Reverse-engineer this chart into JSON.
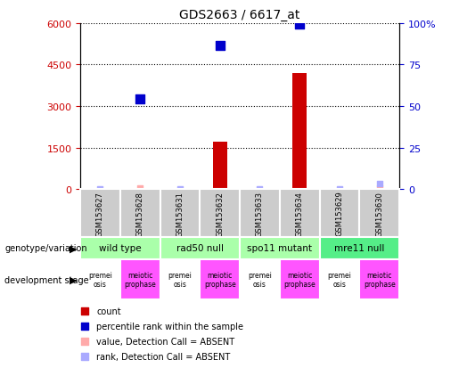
{
  "title": "GDS2663 / 6617_at",
  "samples": [
    "GSM153627",
    "GSM153628",
    "GSM153631",
    "GSM153632",
    "GSM153633",
    "GSM153634",
    "GSM153629",
    "GSM153630"
  ],
  "count_values": [
    null,
    null,
    null,
    1700,
    null,
    4200,
    null,
    null
  ],
  "count_absent_vals": [
    null,
    50,
    null,
    null,
    null,
    null,
    null,
    50
  ],
  "percentile_present": [
    null,
    3250,
    null,
    5200,
    null,
    5950,
    null,
    null
  ],
  "percentile_absent_vals": [
    2,
    null,
    2,
    null,
    2,
    null,
    2,
    200
  ],
  "ylim_left": [
    0,
    6000
  ],
  "ylim_right": [
    0,
    100
  ],
  "yticks_left": [
    0,
    1500,
    3000,
    4500,
    6000
  ],
  "yticks_right": [
    0,
    25,
    50,
    75,
    100
  ],
  "left_tick_labels": [
    "0",
    "1500",
    "3000",
    "4500",
    "6000"
  ],
  "right_tick_labels": [
    "0",
    "25",
    "50",
    "75",
    "100%"
  ],
  "left_color": "#cc0000",
  "right_color": "#0000cc",
  "bar_color": "#cc0000",
  "absent_count_color": "#ffaaaa",
  "absent_rank_color": "#aaaaff",
  "present_rank_color": "#0000cc",
  "genotype_groups": [
    {
      "label": "wild type",
      "span": [
        0,
        2
      ],
      "color": "#aaffaa"
    },
    {
      "label": "rad50 null",
      "span": [
        2,
        4
      ],
      "color": "#aaffaa"
    },
    {
      "label": "spo11 mutant",
      "span": [
        4,
        6
      ],
      "color": "#aaffaa"
    },
    {
      "label": "mre11 null",
      "span": [
        6,
        8
      ],
      "color": "#55ee88"
    }
  ],
  "dev_stages": [
    "premei\nosis",
    "meiotic\nprophase",
    "premei\nosis",
    "meiotic\nprophase",
    "premei\nosis",
    "meiotic\nprophase",
    "premei\nosis",
    "meiotic\nprophase"
  ],
  "dev_stage_colors": [
    "#ffffff",
    "#ff55ff",
    "#ffffff",
    "#ff55ff",
    "#ffffff",
    "#ff55ff",
    "#ffffff",
    "#ff55ff"
  ],
  "sample_box_color": "#cccccc",
  "dot_size_present": 50,
  "dot_size_absent": 20,
  "bar_width": 0.35,
  "legend_items": [
    {
      "color": "#cc0000",
      "text": "count"
    },
    {
      "color": "#0000cc",
      "text": "percentile rank within the sample"
    },
    {
      "color": "#ffaaaa",
      "text": "value, Detection Call = ABSENT"
    },
    {
      "color": "#aaaaff",
      "text": "rank, Detection Call = ABSENT"
    }
  ]
}
